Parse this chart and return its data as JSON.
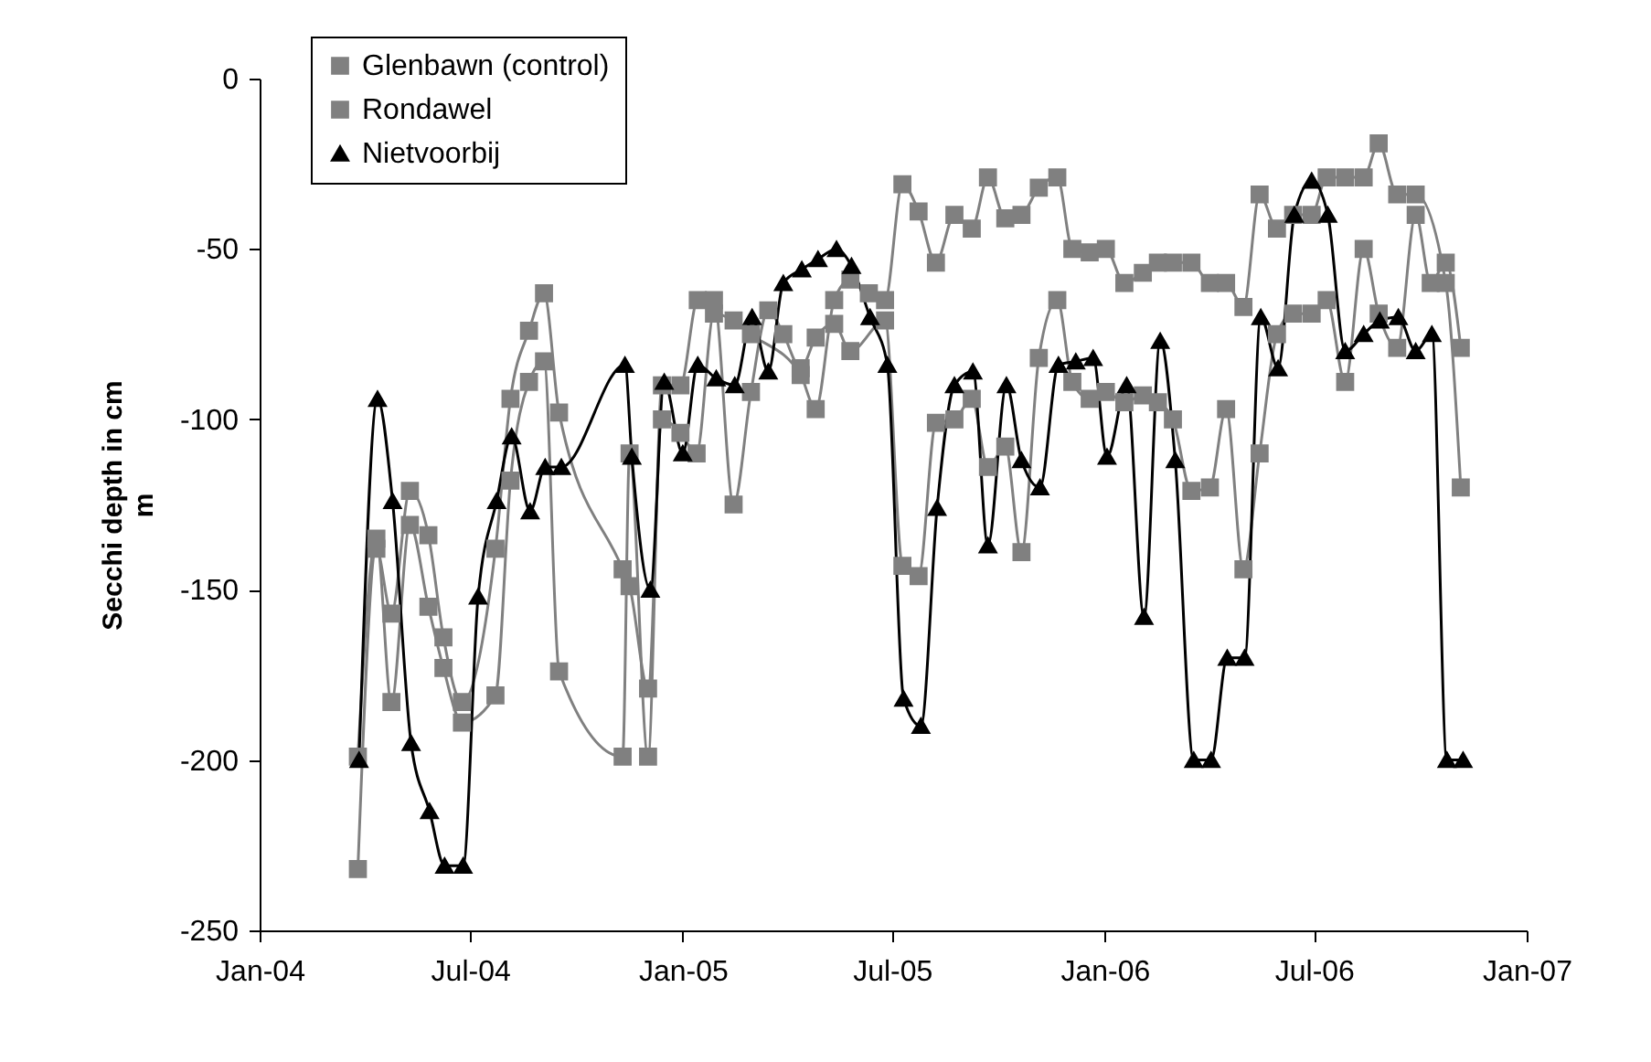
{
  "chart_data": {
    "type": "line",
    "ylabel": "Secchi depth in cm\nm",
    "xlim": [
      "2004-01-01",
      "2007-01-01"
    ],
    "xticks": [
      {
        "value": "2004-01-01",
        "label": "Jan-04"
      },
      {
        "value": "2004-07-01",
        "label": "Jul-04"
      },
      {
        "value": "2005-01-01",
        "label": "Jan-05"
      },
      {
        "value": "2005-07-01",
        "label": "Jul-05"
      },
      {
        "value": "2006-01-01",
        "label": "Jan-06"
      },
      {
        "value": "2006-07-01",
        "label": "Jul-06"
      },
      {
        "value": "2007-01-01",
        "label": "Jan-07"
      }
    ],
    "ylim": [
      -250,
      0
    ],
    "yticks": [
      -250,
      -200,
      -150,
      -100,
      -50,
      0
    ],
    "legend": "top left",
    "series": [
      {
        "name": "Glenbawn (control)",
        "color": "#808080",
        "marker": "square",
        "x": [
          "2004-03-26",
          "2004-04-11",
          "2004-04-24",
          "2004-05-10",
          "2004-05-26",
          "2004-06-08",
          "2004-06-24",
          "2004-07-23",
          "2004-08-05",
          "2004-08-21",
          "2004-09-03",
          "2004-09-16",
          "2004-11-10",
          "2004-11-16",
          "2004-12-02",
          "2004-12-14",
          "2004-12-30",
          "2005-01-13",
          "2005-01-28",
          "2005-02-14",
          "2005-03-01",
          "2005-04-13",
          "2005-04-26",
          "2005-05-12",
          "2005-05-26",
          "2005-06-11",
          "2005-06-25",
          "2005-07-10",
          "2005-07-24",
          "2005-08-08",
          "2005-08-24",
          "2005-09-08",
          "2005-09-22",
          "2005-10-07",
          "2005-10-21",
          "2005-11-05",
          "2005-11-21",
          "2005-12-04",
          "2005-12-19",
          "2006-01-02",
          "2006-01-18",
          "2006-02-03",
          "2006-02-16",
          "2006-03-01",
          "2006-03-17",
          "2006-04-02",
          "2006-04-16",
          "2006-05-01",
          "2006-05-15",
          "2006-05-30",
          "2006-06-13",
          "2006-06-29",
          "2006-07-12",
          "2006-07-28",
          "2006-08-13",
          "2006-08-26",
          "2006-09-11",
          "2006-09-27",
          "2006-10-23",
          "2006-11-05"
        ],
        "values": [
          -232,
          -138,
          -157,
          -121,
          -134,
          -164,
          -183,
          -138,
          -94,
          -74,
          -63,
          -98,
          -144,
          -149,
          -179,
          -100,
          -104,
          -110,
          -69,
          -71,
          -75,
          -87,
          -97,
          -65,
          -59,
          -63,
          -65,
          -31,
          -39,
          -54,
          -40,
          -44,
          -29,
          -41,
          -40,
          -32,
          -29,
          -50,
          -51,
          -50,
          -60,
          -57,
          -54,
          -54,
          -54,
          -60,
          -60,
          -67,
          -34,
          -44,
          -40,
          -40,
          -29,
          -29,
          -29,
          -19,
          -34,
          -34,
          -60,
          -120
        ]
      },
      {
        "name": "Rondawel",
        "color": "#808080",
        "marker": "square",
        "x": [
          "2004-03-26",
          "2004-04-11",
          "2004-04-24",
          "2004-05-10",
          "2004-05-26",
          "2004-06-08",
          "2004-06-24",
          "2004-07-23",
          "2004-08-05",
          "2004-08-21",
          "2004-09-03",
          "2004-09-16",
          "2004-11-10",
          "2004-11-16",
          "2004-12-02",
          "2004-12-14",
          "2004-12-30",
          "2005-01-14",
          "2005-01-28",
          "2005-02-14",
          "2005-03-01",
          "2005-03-16",
          "2005-03-29",
          "2005-04-13",
          "2005-04-26",
          "2005-05-12",
          "2005-05-26",
          "2005-06-25",
          "2005-07-10",
          "2005-07-24",
          "2005-08-08",
          "2005-08-24",
          "2005-09-08",
          "2005-09-22",
          "2005-10-07",
          "2005-10-21",
          "2005-11-05",
          "2005-11-21",
          "2005-12-04",
          "2005-12-19",
          "2006-01-02",
          "2006-01-18",
          "2006-02-03",
          "2006-02-16",
          "2006-03-01",
          "2006-03-17",
          "2006-04-02",
          "2006-04-16",
          "2006-05-01",
          "2006-05-15",
          "2006-05-30",
          "2006-06-13",
          "2006-06-29",
          "2006-07-12",
          "2006-07-28",
          "2006-08-13",
          "2006-08-26",
          "2006-09-11",
          "2006-09-27",
          "2006-10-10",
          "2006-10-23",
          "2006-11-05"
        ],
        "values": [
          -199,
          -135,
          -183,
          -131,
          -155,
          -173,
          -189,
          -181,
          -118,
          -89,
          -83,
          -174,
          -199,
          -110,
          -199,
          -90,
          -90,
          -65,
          -65,
          -125,
          -92,
          -68,
          -75,
          -85,
          -76,
          -72,
          -80,
          -71,
          -143,
          -146,
          -101,
          -100,
          -94,
          -114,
          -108,
          -139,
          -82,
          -65,
          -89,
          -94,
          -92,
          -95,
          -93,
          -95,
          -100,
          -121,
          -120,
          -97,
          -144,
          -110,
          -75,
          -69,
          -69,
          -65,
          -89,
          -50,
          -69,
          -79,
          -40,
          -60,
          -54,
          -79
        ]
      },
      {
        "name": "Nietvoorbij",
        "color": "#000000",
        "marker": "triangle",
        "x": [
          "2004-03-27",
          "2004-04-12",
          "2004-04-25",
          "2004-05-11",
          "2004-05-27",
          "2004-06-09",
          "2004-06-25",
          "2004-07-08",
          "2004-07-24",
          "2004-08-06",
          "2004-08-22",
          "2004-09-04",
          "2004-09-18",
          "2004-11-12",
          "2004-11-18",
          "2004-12-04",
          "2004-12-16",
          "2005-01-01",
          "2005-01-14",
          "2005-01-30",
          "2005-02-15",
          "2005-03-02",
          "2005-03-16",
          "2005-03-29",
          "2005-04-14",
          "2005-04-28",
          "2005-05-14",
          "2005-05-27",
          "2005-06-12",
          "2005-06-27",
          "2005-07-11",
          "2005-07-26",
          "2005-08-09",
          "2005-08-24",
          "2005-09-09",
          "2005-09-22",
          "2005-10-08",
          "2005-10-21",
          "2005-11-06",
          "2005-11-22",
          "2005-12-07",
          "2005-12-22",
          "2006-01-03",
          "2006-01-20",
          "2006-02-04",
          "2006-02-18",
          "2006-03-03",
          "2006-03-19",
          "2006-04-03",
          "2006-04-17",
          "2006-05-02",
          "2006-05-16",
          "2006-05-31",
          "2006-06-14",
          "2006-06-29",
          "2006-07-13",
          "2006-07-28",
          "2006-08-13",
          "2006-08-27",
          "2006-09-12",
          "2006-09-27",
          "2006-10-11",
          "2006-10-24",
          "2006-11-07"
        ],
        "values": [
          -200,
          -94,
          -124,
          -195,
          -215,
          -231,
          -231,
          -152,
          -124,
          -105,
          -127,
          -114,
          -114,
          -84,
          -111,
          -150,
          -89,
          -110,
          -84,
          -88,
          -90,
          -70,
          -86,
          -60,
          -56,
          -53,
          -50,
          -55,
          -70,
          -84,
          -182,
          -190,
          -126,
          -90,
          -86,
          -137,
          -90,
          -112,
          -120,
          -84,
          -83,
          -82,
          -111,
          -90,
          -158,
          -77,
          -112,
          -200,
          -200,
          -170,
          -170,
          -70,
          -85,
          -40,
          -30,
          -40,
          -80,
          -75,
          -71,
          -70,
          -80,
          -75,
          -200,
          -200
        ]
      }
    ]
  }
}
